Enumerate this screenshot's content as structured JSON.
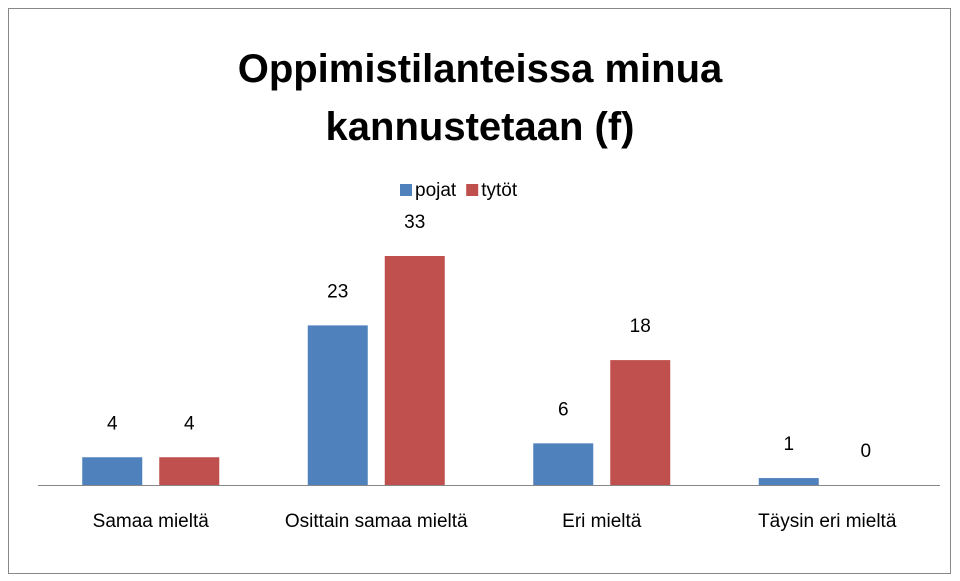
{
  "chart_data": {
    "type": "bar",
    "title": "Oppimistilanteissa minua kannustetaan (f)",
    "categories": [
      "Samaa mieltä",
      "Osittain samaa mieltä",
      "Eri mieltä",
      "Täysin eri mieltä"
    ],
    "series": [
      {
        "name": "pojat",
        "color": "#4f81bd",
        "values": [
          4,
          23,
          6,
          1
        ]
      },
      {
        "name": "tytöt",
        "color": "#c0504d",
        "values": [
          4,
          33,
          18,
          0
        ]
      }
    ],
    "legend": "top"
  }
}
